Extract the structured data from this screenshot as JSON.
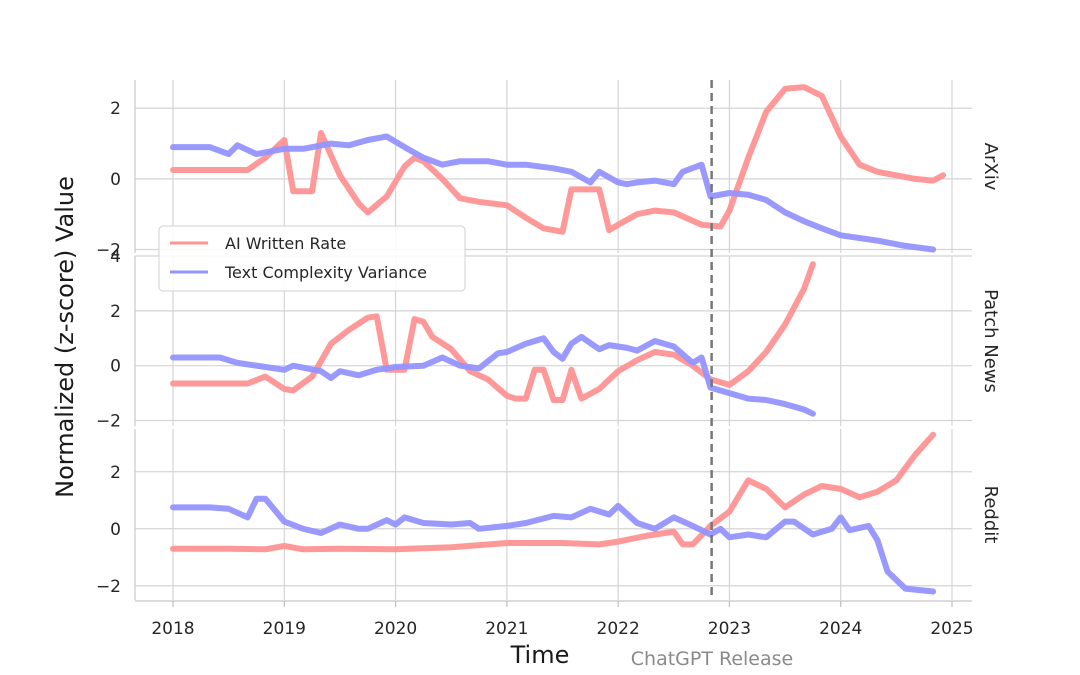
{
  "chart_data": {
    "type": "line",
    "xlabel": "Time",
    "ylabel": "Normalized (z-score) Value",
    "xlim": [
      2017.67,
      2025.2
    ],
    "x_ticks": [
      2018,
      2019,
      2020,
      2021,
      2022,
      2023,
      2024,
      2025
    ],
    "x_tick_labels": [
      "2018",
      "2019",
      "2020",
      "2021",
      "2022",
      "2023",
      "2024",
      "2025"
    ],
    "grid": true,
    "legend": {
      "placement": "center-left",
      "entries": [
        "AI Written Rate",
        "Text Complexity Variance"
      ]
    },
    "annotation": {
      "type": "vertical-dashed-line",
      "x": 2022.84,
      "label": "ChatGPT Release"
    },
    "colors": {
      "ai_written_rate": "#ff9494",
      "text_complexity_variance": "#9494ff",
      "annotation_line": "#777777"
    },
    "panels": [
      {
        "facet_label": "ArXiv",
        "ylim": [
          -2.1,
          2.8
        ],
        "y_ticks": [
          -2,
          0,
          2
        ],
        "y_tick_labels": [
          "−2",
          "0",
          "2"
        ],
        "series": [
          {
            "name": "AI Written Rate",
            "key": "ai_written_rate",
            "x": [
              2018.0,
              2018.67,
              2018.83,
              2019.0,
              2019.08,
              2019.25,
              2019.33,
              2019.5,
              2019.67,
              2019.75,
              2019.92,
              2020.08,
              2020.17,
              2020.25,
              2020.42,
              2020.58,
              2020.75,
              2021.0,
              2021.17,
              2021.33,
              2021.5,
              2021.58,
              2021.67,
              2021.83,
              2021.92,
              2022.0,
              2022.17,
              2022.33,
              2022.5,
              2022.75,
              2022.92,
              2023.0,
              2023.17,
              2023.33,
              2023.5,
              2023.67,
              2023.83,
              2024.0,
              2024.17,
              2024.33,
              2024.67,
              2024.83,
              2024.92
            ],
            "values": [
              0.25,
              0.25,
              0.6,
              1.1,
              -0.35,
              -0.35,
              1.3,
              0.1,
              -0.7,
              -0.95,
              -0.5,
              0.35,
              0.6,
              0.5,
              0.0,
              -0.55,
              -0.65,
              -0.75,
              -1.1,
              -1.4,
              -1.5,
              -0.3,
              -0.3,
              -0.3,
              -1.45,
              -1.3,
              -1.0,
              -0.9,
              -0.95,
              -1.3,
              -1.35,
              -0.9,
              0.6,
              1.9,
              2.55,
              2.6,
              2.35,
              1.2,
              0.4,
              0.2,
              0.0,
              -0.05,
              0.1
            ]
          },
          {
            "name": "Text Complexity Variance",
            "key": "text_complexity_variance",
            "x": [
              2018.0,
              2018.33,
              2018.5,
              2018.58,
              2018.75,
              2019.0,
              2019.17,
              2019.42,
              2019.58,
              2019.75,
              2019.92,
              2020.08,
              2020.25,
              2020.42,
              2020.58,
              2020.83,
              2021.0,
              2021.17,
              2021.42,
              2021.58,
              2021.75,
              2021.83,
              2022.0,
              2022.08,
              2022.17,
              2022.33,
              2022.5,
              2022.58,
              2022.75,
              2022.83,
              2023.0,
              2023.17,
              2023.33,
              2023.5,
              2023.67,
              2023.83,
              2024.0,
              2024.33,
              2024.58,
              2024.83
            ],
            "values": [
              0.9,
              0.9,
              0.7,
              0.95,
              0.7,
              0.85,
              0.85,
              1.0,
              0.95,
              1.1,
              1.2,
              0.9,
              0.6,
              0.4,
              0.5,
              0.5,
              0.4,
              0.4,
              0.3,
              0.2,
              -0.1,
              0.2,
              -0.1,
              -0.15,
              -0.1,
              -0.05,
              -0.15,
              0.2,
              0.4,
              -0.5,
              -0.4,
              -0.45,
              -0.6,
              -0.95,
              -1.2,
              -1.4,
              -1.6,
              -1.75,
              -1.9,
              -2.0
            ]
          }
        ]
      },
      {
        "facet_label": "Patch News",
        "ylim": [
          -2.2,
          4.0
        ],
        "y_ticks": [
          -2,
          0,
          2,
          4
        ],
        "y_tick_labels": [
          "−2",
          "0",
          "2",
          "4"
        ],
        "series": [
          {
            "name": "AI Written Rate",
            "key": "ai_written_rate",
            "x": [
              2018.0,
              2018.67,
              2018.83,
              2019.0,
              2019.08,
              2019.25,
              2019.42,
              2019.58,
              2019.75,
              2019.83,
              2019.92,
              2020.08,
              2020.17,
              2020.25,
              2020.33,
              2020.5,
              2020.67,
              2020.83,
              2021.0,
              2021.08,
              2021.17,
              2021.25,
              2021.33,
              2021.42,
              2021.5,
              2021.58,
              2021.67,
              2021.83,
              2022.0,
              2022.17,
              2022.33,
              2022.5,
              2022.67,
              2022.83,
              2023.0,
              2023.17,
              2023.33,
              2023.5,
              2023.67,
              2023.75
            ],
            "values": [
              -0.65,
              -0.65,
              -0.4,
              -0.85,
              -0.9,
              -0.4,
              0.8,
              1.3,
              1.75,
              1.8,
              -0.15,
              -0.15,
              1.7,
              1.6,
              1.05,
              0.6,
              -0.2,
              -0.5,
              -1.1,
              -1.2,
              -1.2,
              -0.15,
              -0.15,
              -1.25,
              -1.25,
              -0.15,
              -1.2,
              -0.85,
              -0.2,
              0.2,
              0.5,
              0.4,
              0.0,
              -0.5,
              -0.7,
              -0.2,
              0.5,
              1.5,
              2.8,
              3.7
            ]
          },
          {
            "name": "Text Complexity Variance",
            "key": "text_complexity_variance",
            "x": [
              2018.0,
              2018.42,
              2018.58,
              2018.83,
              2019.0,
              2019.08,
              2019.33,
              2019.42,
              2019.5,
              2019.67,
              2019.83,
              2020.0,
              2020.25,
              2020.42,
              2020.58,
              2020.75,
              2020.92,
              2021.0,
              2021.17,
              2021.33,
              2021.42,
              2021.5,
              2021.58,
              2021.67,
              2021.83,
              2021.92,
              2022.08,
              2022.17,
              2022.33,
              2022.5,
              2022.67,
              2022.75,
              2022.83,
              2023.0,
              2023.17,
              2023.33,
              2023.5,
              2023.67,
              2023.75
            ],
            "values": [
              0.3,
              0.3,
              0.1,
              -0.05,
              -0.15,
              0.0,
              -0.2,
              -0.45,
              -0.2,
              -0.35,
              -0.15,
              -0.05,
              0.0,
              0.3,
              0.0,
              -0.1,
              0.45,
              0.5,
              0.8,
              1.0,
              0.5,
              0.25,
              0.8,
              1.05,
              0.6,
              0.75,
              0.65,
              0.55,
              0.9,
              0.7,
              0.1,
              0.3,
              -0.8,
              -1.0,
              -1.2,
              -1.25,
              -1.4,
              -1.6,
              -1.75
            ]
          }
        ]
      },
      {
        "facet_label": "Reddit",
        "ylim": [
          -2.5,
          3.5
        ],
        "y_ticks": [
          -2,
          0,
          2
        ],
        "y_tick_labels": [
          "−2",
          "0",
          "2"
        ],
        "series": [
          {
            "name": "AI Written Rate",
            "key": "ai_written_rate",
            "x": [
              2018.0,
              2018.5,
              2018.83,
              2019.0,
              2019.17,
              2019.5,
              2020.0,
              2020.5,
              2021.0,
              2021.5,
              2021.83,
              2022.0,
              2022.25,
              2022.5,
              2022.58,
              2022.67,
              2022.83,
              2023.0,
              2023.17,
              2023.33,
              2023.5,
              2023.67,
              2023.83,
              2024.0,
              2024.17,
              2024.33,
              2024.5,
              2024.67,
              2024.83
            ],
            "values": [
              -0.7,
              -0.7,
              -0.72,
              -0.6,
              -0.72,
              -0.7,
              -0.72,
              -0.65,
              -0.5,
              -0.5,
              -0.55,
              -0.45,
              -0.25,
              -0.1,
              -0.55,
              -0.55,
              0.1,
              0.6,
              1.7,
              1.4,
              0.75,
              1.2,
              1.5,
              1.4,
              1.1,
              1.3,
              1.7,
              2.6,
              3.3
            ]
          },
          {
            "name": "Text Complexity Variance",
            "key": "text_complexity_variance",
            "x": [
              2018.0,
              2018.33,
              2018.5,
              2018.67,
              2018.75,
              2018.83,
              2019.0,
              2019.17,
              2019.33,
              2019.5,
              2019.67,
              2019.75,
              2019.92,
              2020.0,
              2020.08,
              2020.25,
              2020.5,
              2020.67,
              2020.75,
              2021.0,
              2021.17,
              2021.42,
              2021.58,
              2021.75,
              2021.92,
              2022.0,
              2022.17,
              2022.33,
              2022.5,
              2022.67,
              2022.83,
              2022.92,
              2023.0,
              2023.17,
              2023.33,
              2023.5,
              2023.58,
              2023.75,
              2023.92,
              2024.0,
              2024.08,
              2024.25,
              2024.33,
              2024.42,
              2024.58,
              2024.83
            ],
            "values": [
              0.75,
              0.75,
              0.7,
              0.4,
              1.05,
              1.05,
              0.25,
              0.0,
              -0.15,
              0.15,
              0.0,
              0.0,
              0.3,
              0.15,
              0.4,
              0.2,
              0.15,
              0.2,
              0.0,
              0.1,
              0.2,
              0.45,
              0.4,
              0.7,
              0.5,
              0.8,
              0.2,
              0.0,
              0.4,
              0.1,
              -0.2,
              0.0,
              -0.3,
              -0.2,
              -0.3,
              0.25,
              0.25,
              -0.2,
              0.0,
              0.4,
              -0.05,
              0.1,
              -0.4,
              -1.5,
              -2.1,
              -2.2
            ]
          }
        ]
      }
    ]
  }
}
